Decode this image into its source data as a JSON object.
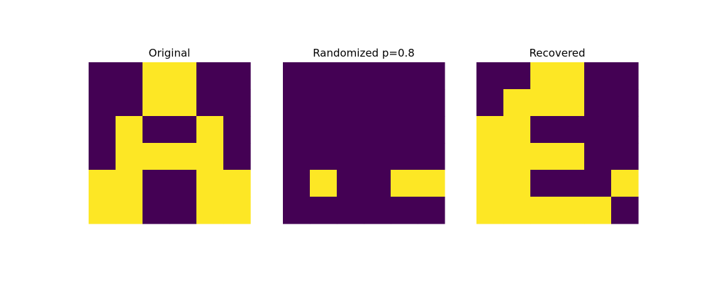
{
  "colors": {
    "low": "#440154",
    "high": "#fde725",
    "background": "#ffffff"
  },
  "chart_data": [
    {
      "type": "heatmap",
      "title": "Original",
      "rows": 6,
      "cols": 6,
      "values": [
        [
          0,
          0,
          1,
          1,
          0,
          0
        ],
        [
          0,
          0,
          1,
          1,
          0,
          0
        ],
        [
          0,
          1,
          0,
          0,
          1,
          0
        ],
        [
          0,
          1,
          1,
          1,
          1,
          0
        ],
        [
          1,
          1,
          0,
          0,
          1,
          1
        ],
        [
          1,
          1,
          0,
          0,
          1,
          1
        ]
      ]
    },
    {
      "type": "heatmap",
      "title": "Randomized p=0.8",
      "rows": 6,
      "cols": 6,
      "values": [
        [
          0,
          0,
          0,
          0,
          0,
          0
        ],
        [
          0,
          0,
          0,
          0,
          0,
          0
        ],
        [
          0,
          0,
          0,
          0,
          0,
          0
        ],
        [
          0,
          0,
          0,
          0,
          0,
          0
        ],
        [
          0,
          1,
          0,
          0,
          1,
          1
        ],
        [
          0,
          0,
          0,
          0,
          0,
          0
        ]
      ]
    },
    {
      "type": "heatmap",
      "title": "Recovered",
      "rows": 6,
      "cols": 6,
      "values": [
        [
          0,
          0,
          1,
          1,
          0,
          0
        ],
        [
          0,
          1,
          1,
          1,
          0,
          0
        ],
        [
          1,
          1,
          0,
          0,
          0,
          0
        ],
        [
          1,
          1,
          1,
          1,
          0,
          0
        ],
        [
          1,
          1,
          0,
          0,
          0,
          1
        ],
        [
          1,
          1,
          1,
          1,
          1,
          0
        ]
      ]
    }
  ]
}
